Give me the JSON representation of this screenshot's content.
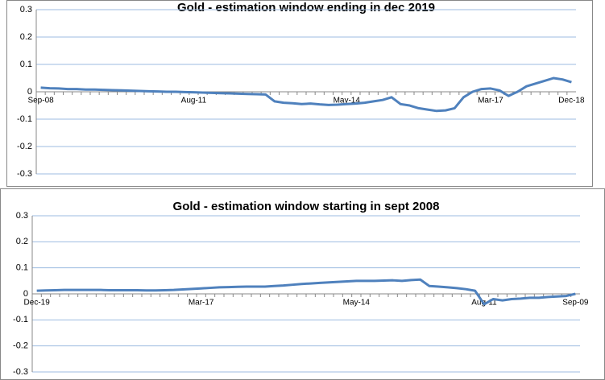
{
  "chart_data": [
    {
      "type": "line",
      "title": "Gold - estimation window ending in dec 2019",
      "categories": [
        "Sep-08",
        null,
        null,
        null,
        null,
        null,
        null,
        null,
        null,
        null,
        null,
        null,
        null,
        null,
        null,
        null,
        null,
        "Aug-11",
        null,
        null,
        null,
        null,
        null,
        null,
        null,
        null,
        null,
        null,
        null,
        null,
        null,
        null,
        null,
        null,
        "May-14",
        null,
        null,
        null,
        null,
        null,
        null,
        null,
        null,
        null,
        null,
        null,
        null,
        null,
        null,
        null,
        "Mar-17",
        null,
        null,
        null,
        null,
        null,
        null,
        null,
        null,
        "Dec-18"
      ],
      "series": [
        {
          "color": "#4f81bd",
          "values": [
            0.015,
            0.013,
            0.012,
            0.01,
            0.01,
            0.008,
            0.008,
            0.007,
            0.006,
            0.005,
            0.004,
            0.003,
            0.002,
            0.001,
            0,
            0,
            -0.001,
            -0.002,
            -0.003,
            -0.004,
            -0.005,
            -0.006,
            -0.007,
            -0.008,
            -0.009,
            -0.01,
            -0.035,
            -0.04,
            -0.042,
            -0.045,
            -0.043,
            -0.046,
            -0.048,
            -0.047,
            -0.045,
            -0.043,
            -0.04,
            -0.035,
            -0.03,
            -0.02,
            -0.045,
            -0.05,
            -0.06,
            -0.065,
            -0.07,
            -0.068,
            -0.06,
            -0.02,
            0,
            0.01,
            0.012,
            0.005,
            -0.015,
            0,
            0.02,
            0.03,
            0.04,
            0.05,
            0.045,
            0.035
          ]
        }
      ],
      "ylim": [
        -0.3,
        0.3
      ],
      "yticks": [
        -0.3,
        -0.2,
        -0.1,
        0,
        0.1,
        0.2,
        0.3
      ],
      "grid": true
    },
    {
      "type": "line",
      "title": "Gold - estimation window starting in sept 2008",
      "categories": [
        "Dec-19",
        null,
        null,
        null,
        null,
        null,
        null,
        null,
        null,
        null,
        null,
        null,
        null,
        null,
        null,
        null,
        null,
        null,
        "Mar-17",
        null,
        null,
        null,
        null,
        null,
        null,
        null,
        null,
        null,
        null,
        null,
        null,
        null,
        null,
        null,
        null,
        "May-14",
        null,
        null,
        null,
        null,
        null,
        null,
        null,
        null,
        null,
        null,
        null,
        null,
        null,
        "Aug-11",
        null,
        null,
        null,
        null,
        null,
        null,
        null,
        null,
        null,
        "Sep-09"
      ],
      "series": [
        {
          "color": "#4f81bd",
          "values": [
            0.012,
            0.013,
            0.014,
            0.015,
            0.015,
            0.015,
            0.015,
            0.015,
            0.014,
            0.014,
            0.014,
            0.014,
            0.013,
            0.013,
            0.014,
            0.015,
            0.017,
            0.019,
            0.021,
            0.023,
            0.025,
            0.026,
            0.027,
            0.028,
            0.028,
            0.028,
            0.03,
            0.032,
            0.035,
            0.038,
            0.04,
            0.042,
            0.044,
            0.046,
            0.048,
            0.05,
            0.05,
            0.05,
            0.051,
            0.052,
            0.05,
            0.053,
            0.055,
            0.03,
            0.028,
            0.025,
            0.022,
            0.018,
            0.012,
            -0.04,
            -0.02,
            -0.025,
            -0.02,
            -0.018,
            -0.015,
            -0.015,
            -0.012,
            -0.01,
            -0.008,
            0
          ]
        }
      ],
      "ylim": [
        -0.3,
        0.3
      ],
      "yticks": [
        -0.3,
        -0.2,
        -0.1,
        0,
        0.1,
        0.2,
        0.3
      ],
      "grid": true
    }
  ]
}
